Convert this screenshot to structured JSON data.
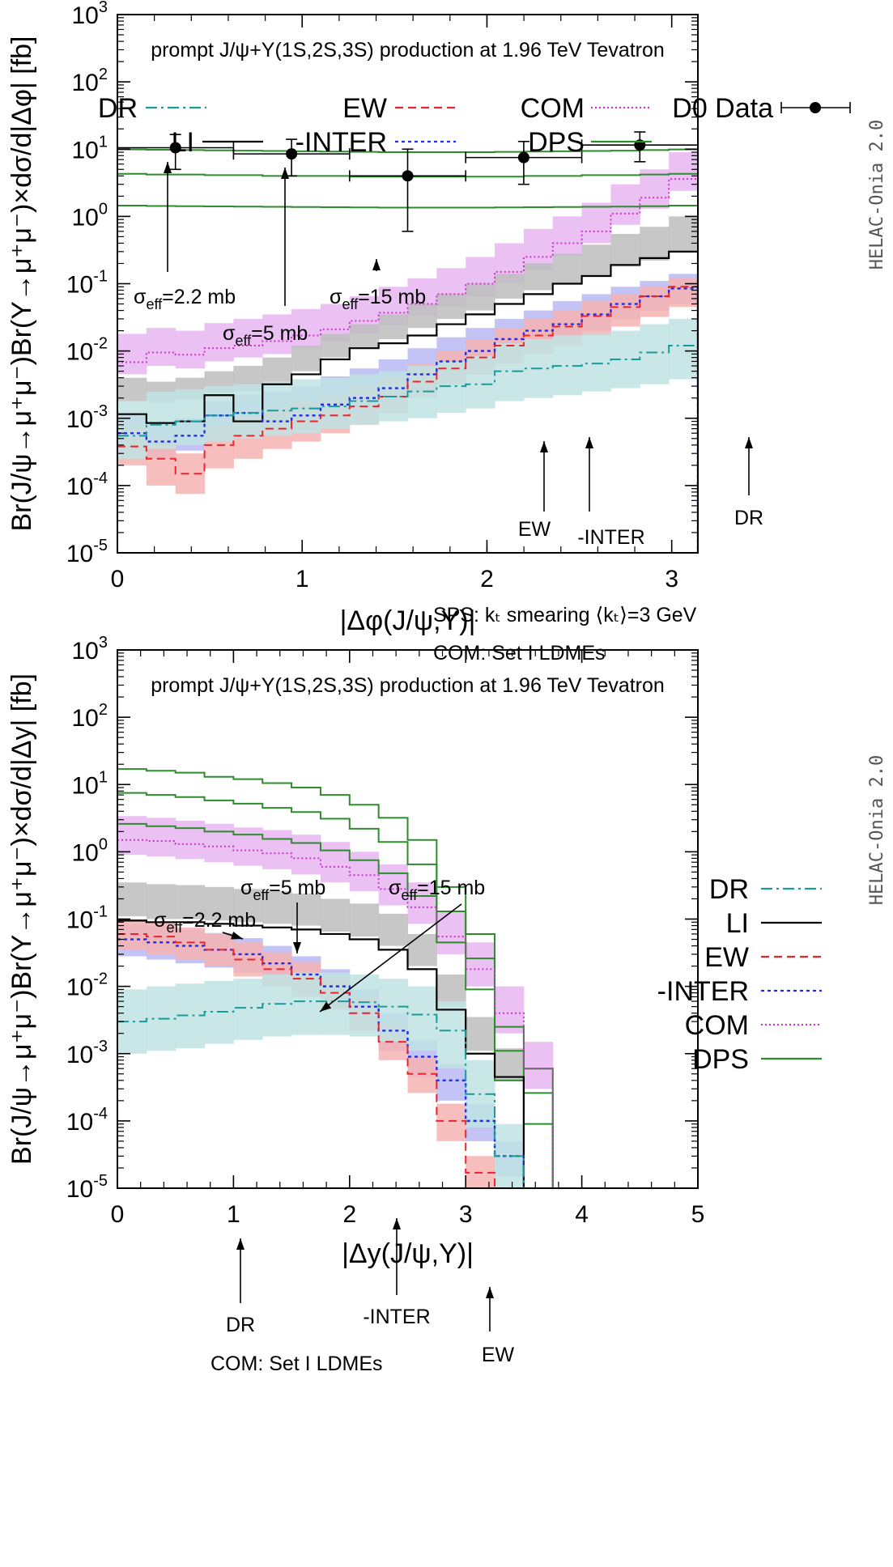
{
  "watermark": "HELAC-Onia 2.0",
  "colors": {
    "DR": "#1a9a9a",
    "LI": "#000000",
    "EW": "#e8252b",
    "INTER": "#1f2ee6",
    "COM": "#cc33cc",
    "DPS": "#2e8b2e",
    "DATA": "#000000",
    "DR_band": "#bfe3e3",
    "LI_band": "#bdbdbd",
    "EW_band": "#f6b3b3",
    "INTER_band": "#b9b9f3",
    "COM_band": "#e7b6f2"
  },
  "chart_data": [
    {
      "type": "line",
      "title": "prompt J/ψ+Υ(1S,2S,3S) production at 1.96 TeV Tevatron",
      "xlabel": "|Δφ(J/ψ,Υ)|",
      "ylabel": "Br(J/ψ→μ⁺μ⁻)Br(Υ→μ⁺μ⁻)×dσ/d|Δφ| [fb]",
      "xlim": [
        0,
        3.14159
      ],
      "ylim_log10": [
        -5,
        3
      ],
      "log_y": true,
      "xticks": [
        "0",
        "1",
        "2",
        "3"
      ],
      "xtick_values": [
        0,
        1,
        2,
        3
      ],
      "yticks": [
        "10",
        "10",
        "10",
        "10",
        "10",
        "10",
        "10",
        "10",
        "10"
      ],
      "ytick_exps": [
        "-5",
        "-4",
        "-3",
        "-2",
        "-1",
        "0",
        "1",
        "2",
        "3"
      ],
      "legend": {
        "labels": {
          "DR": "DR",
          "LI": "LI",
          "EW": "EW",
          "INTER": "-INTER",
          "COM": "COM",
          "DPS": "DPS",
          "DATA": "D0 Data"
        },
        "placement": "top"
      },
      "annotations": {
        "text1": "SPS: kₜ smearing ⟨kₜ⟩=3 GeV",
        "text2": "COM: Set I LDMEs",
        "s22": "σeff=2.2 mb",
        "s5": "σeff=5 mb",
        "s15": "σeff=15 mb",
        "ew": "EW",
        "inter": "-INTER",
        "dr": "DR"
      },
      "nbins": 20,
      "series": [
        {
          "name": "DPS",
          "key": "DPS",
          "groups": [
            [
              9.9,
              9.8,
              9.7,
              9.6,
              9.5,
              9.4,
              9.3,
              9.2,
              9.1,
              9.0,
              9.0,
              9.0,
              9.0,
              9.1,
              9.2,
              9.3,
              9.4,
              9.5,
              9.7,
              9.9
            ],
            [
              4.3,
              4.2,
              4.2,
              4.1,
              4.1,
              4.0,
              4.0,
              4.0,
              3.9,
              3.9,
              3.9,
              3.9,
              3.9,
              3.9,
              4.0,
              4.0,
              4.1,
              4.1,
              4.2,
              4.3
            ],
            [
              1.45,
              1.43,
              1.42,
              1.41,
              1.4,
              1.39,
              1.38,
              1.37,
              1.36,
              1.35,
              1.35,
              1.35,
              1.35,
              1.36,
              1.37,
              1.38,
              1.39,
              1.4,
              1.42,
              1.45
            ]
          ]
        },
        {
          "name": "COM",
          "key": "COM",
          "values": [
            0.0068,
            0.0095,
            0.0088,
            0.011,
            0.012,
            0.014,
            0.017,
            0.021,
            0.028,
            0.037,
            0.05,
            0.07,
            0.1,
            0.15,
            0.25,
            0.4,
            0.6,
            1.1,
            1.9,
            3.6
          ],
          "lo": [
            0.0045,
            0.006,
            0.0055,
            0.007,
            0.008,
            0.009,
            0.011,
            0.014,
            0.018,
            0.024,
            0.033,
            0.046,
            0.065,
            0.1,
            0.16,
            0.26,
            0.4,
            0.75,
            1.3,
            2.4
          ],
          "hi": [
            0.018,
            0.022,
            0.02,
            0.026,
            0.03,
            0.035,
            0.042,
            0.05,
            0.065,
            0.09,
            0.12,
            0.17,
            0.25,
            0.4,
            0.65,
            1.0,
            1.6,
            3.0,
            5.0,
            9.0
          ]
        },
        {
          "name": "LI",
          "key": "LI",
          "values": [
            0.00115,
            0.00085,
            0.0009,
            0.0022,
            0.0009,
            0.0032,
            0.0045,
            0.0075,
            0.011,
            0.013,
            0.017,
            0.025,
            0.035,
            0.05,
            0.07,
            0.1,
            0.13,
            0.19,
            0.24,
            0.3
          ],
          "lo": [
            0.0018,
            0.0017,
            0.0019,
            0.0024,
            0.0025,
            0.0035,
            0.005,
            0.008,
            0.011,
            0.015,
            0.022,
            0.03,
            0.04,
            0.06,
            0.08,
            0.1,
            0.13,
            0.18,
            0.22,
            0.3
          ],
          "hi": [
            0.004,
            0.0035,
            0.004,
            0.005,
            0.006,
            0.008,
            0.012,
            0.018,
            0.025,
            0.035,
            0.05,
            0.07,
            0.1,
            0.14,
            0.2,
            0.28,
            0.38,
            0.55,
            0.7,
            1.0
          ]
        },
        {
          "name": "-INTER",
          "key": "INTER",
          "values": [
            0.0006,
            0.00045,
            0.00055,
            0.0011,
            0.0012,
            0.0009,
            0.0011,
            0.0016,
            0.002,
            0.0028,
            0.0045,
            0.007,
            0.01,
            0.015,
            0.02,
            0.025,
            0.035,
            0.05,
            0.065,
            0.085
          ],
          "lo": [
            0.0003,
            0.00025,
            0.00033,
            0.0005,
            0.0006,
            0.00065,
            0.0007,
            0.0009,
            0.0012,
            0.0017,
            0.0026,
            0.004,
            0.006,
            0.008,
            0.011,
            0.015,
            0.02,
            0.03,
            0.04,
            0.05
          ],
          "hi": [
            0.0012,
            0.0008,
            0.001,
            0.0018,
            0.0022,
            0.0025,
            0.003,
            0.0042,
            0.0055,
            0.0075,
            0.011,
            0.016,
            0.022,
            0.03,
            0.04,
            0.055,
            0.07,
            0.09,
            0.11,
            0.14
          ]
        },
        {
          "name": "EW",
          "key": "EW",
          "values": [
            0.00038,
            0.00025,
            0.00015,
            0.0004,
            0.00055,
            0.0007,
            0.0009,
            0.0011,
            0.0015,
            0.0021,
            0.0035,
            0.0055,
            0.008,
            0.012,
            0.017,
            0.023,
            0.033,
            0.045,
            0.065,
            0.09
          ],
          "lo": [
            0.0002,
            0.0001,
            7.5e-05,
            0.00018,
            0.00025,
            0.00035,
            0.00045,
            0.0006,
            0.0008,
            0.0012,
            0.002,
            0.0031,
            0.0045,
            0.0065,
            0.009,
            0.012,
            0.017,
            0.023,
            0.032,
            0.045
          ],
          "hi": [
            0.00075,
            0.0005,
            0.0003,
            0.0008,
            0.0011,
            0.0014,
            0.0018,
            0.0022,
            0.003,
            0.0042,
            0.0065,
            0.01,
            0.015,
            0.022,
            0.03,
            0.04,
            0.055,
            0.07,
            0.09,
            0.12
          ]
        },
        {
          "name": "DR",
          "key": "DR",
          "values": [
            0.00055,
            0.0008,
            0.0009,
            0.0011,
            0.0012,
            0.0013,
            0.0014,
            0.0015,
            0.0018,
            0.0021,
            0.0025,
            0.003,
            0.0032,
            0.005,
            0.0055,
            0.006,
            0.0065,
            0.0075,
            0.0095,
            0.012
          ],
          "lo": [
            0.00025,
            0.00035,
            0.0004,
            0.00045,
            0.0005,
            0.00055,
            0.0006,
            0.0007,
            0.0008,
            0.0009,
            0.001,
            0.0012,
            0.0014,
            0.0018,
            0.002,
            0.0022,
            0.0025,
            0.0028,
            0.0032,
            0.0038
          ],
          "hi": [
            0.0018,
            0.0025,
            0.0027,
            0.003,
            0.0032,
            0.0035,
            0.0038,
            0.004,
            0.0045,
            0.005,
            0.006,
            0.007,
            0.0085,
            0.013,
            0.015,
            0.017,
            0.018,
            0.02,
            0.025,
            0.03
          ]
        }
      ],
      "data_points": {
        "name": "D0 Data",
        "x": [
          0.3142,
          0.9425,
          1.5708,
          2.1991,
          2.8274
        ],
        "y": [
          10.5,
          8.5,
          4.0,
          7.5,
          11.5
        ],
        "ylo": [
          5.0,
          4.0,
          0.6,
          3.0,
          6.5
        ],
        "yhi": [
          16.5,
          14.0,
          10.0,
          13.0,
          18.0
        ],
        "xerr": 0.3142
      }
    },
    {
      "type": "line",
      "title": "prompt J/ψ+Υ(1S,2S,3S) production at 1.96 TeV Tevatron",
      "xlabel": "|Δy(J/ψ,Υ)|",
      "ylabel": "Br(J/ψ→μ⁺μ⁻)Br(Υ→μ⁺μ⁻)×dσ/d|Δy| [fb]",
      "xlim": [
        0,
        5
      ],
      "ylim_log10": [
        -5,
        3
      ],
      "log_y": true,
      "xticks": [
        "0",
        "1",
        "2",
        "3",
        "4",
        "5"
      ],
      "xtick_values": [
        0,
        1,
        2,
        3,
        4,
        5
      ],
      "yticks": [
        "10",
        "10",
        "10",
        "10",
        "10",
        "10",
        "10",
        "10",
        "10"
      ],
      "ytick_exps": [
        "-5",
        "-4",
        "-3",
        "-2",
        "-1",
        "0",
        "1",
        "2",
        "3"
      ],
      "legend": {
        "labels": {
          "DR": "DR",
          "LI": "LI",
          "EW": "EW",
          "INTER": "-INTER",
          "COM": "COM",
          "DPS": "DPS"
        },
        "placement": "top-right"
      },
      "annotations": {
        "text2": "COM: Set I LDMEs",
        "s22": "σeff=2.2 mb",
        "s5": "σeff=5 mb",
        "s15": "σeff=15 mb",
        "dr": "DR",
        "inter": "-INTER",
        "ew": "EW"
      },
      "nbins": 16,
      "bin_width": 0.25,
      "series": [
        {
          "name": "DPS",
          "key": "DPS",
          "groups": [
            [
              17,
              16,
              15,
              13,
              12,
              10.5,
              9,
              7,
              5,
              3.2,
              1.5,
              0.3,
              0.06,
              0.0025,
              0.0006,
              0
            ],
            [
              7.5,
              7,
              6.5,
              5.8,
              5.2,
              4.5,
              3.9,
              3.1,
              2.2,
              1.4,
              0.65,
              0.13,
              0.026,
              0.0011,
              0.00026,
              0
            ],
            [
              2.6,
              2.4,
              2.25,
              2.0,
              1.8,
              1.55,
              1.35,
              1.05,
              0.75,
              0.48,
              0.22,
              0.045,
              0.009,
              0.0004,
              9e-05,
              0
            ]
          ]
        },
        {
          "name": "COM",
          "key": "COM",
          "values": [
            1.5,
            1.45,
            1.3,
            1.2,
            1.05,
            0.95,
            0.8,
            0.6,
            0.45,
            0.28,
            0.15,
            0.055,
            0.018,
            0.004,
            0.0006,
            0
          ],
          "lo": [
            0.9,
            0.85,
            0.78,
            0.7,
            0.62,
            0.55,
            0.46,
            0.35,
            0.26,
            0.16,
            0.085,
            0.03,
            0.01,
            0.002,
            0.0003,
            0
          ],
          "hi": [
            3.4,
            3.2,
            2.9,
            2.6,
            2.3,
            2.1,
            1.8,
            1.4,
            1.0,
            0.65,
            0.35,
            0.13,
            0.045,
            0.01,
            0.0015,
            0
          ]
        },
        {
          "name": "LI",
          "key": "LI",
          "values": [
            0.095,
            0.09,
            0.09,
            0.085,
            0.08,
            0.075,
            0.07,
            0.06,
            0.05,
            0.035,
            0.018,
            0.0045,
            0.001,
            0.00045,
            0,
            0
          ],
          "lo": [
            0.11,
            0.1,
            0.1,
            0.095,
            0.09,
            0.085,
            0.08,
            0.065,
            0.055,
            0.04,
            0.02,
            0.005,
            0.0011,
            0.0004,
            0,
            0
          ],
          "hi": [
            0.35,
            0.33,
            0.32,
            0.3,
            0.28,
            0.26,
            0.24,
            0.2,
            0.17,
            0.12,
            0.06,
            0.015,
            0.0035,
            0.0012,
            0,
            0
          ]
        },
        {
          "name": "-INTER",
          "key": "INTER",
          "values": [
            0.05,
            0.045,
            0.04,
            0.035,
            0.03,
            0.022,
            0.015,
            0.01,
            0.005,
            0.0022,
            0.0009,
            0.0004,
            0.0001,
            3e-05,
            0,
            0
          ],
          "lo": [
            0.028,
            0.025,
            0.022,
            0.019,
            0.016,
            0.012,
            0.008,
            0.005,
            0.0025,
            0.0011,
            0.00045,
            0.0002,
            5e-05,
            1.5e-05,
            0,
            0
          ],
          "hi": [
            0.085,
            0.08,
            0.07,
            0.062,
            0.052,
            0.04,
            0.028,
            0.018,
            0.009,
            0.004,
            0.0016,
            0.0007,
            0.00018,
            5e-05,
            0,
            0
          ]
        },
        {
          "name": "EW",
          "key": "EW",
          "values": [
            0.06,
            0.055,
            0.045,
            0.035,
            0.025,
            0.018,
            0.013,
            0.008,
            0.004,
            0.0015,
            0.0005,
            0.0001,
            1.7e-05,
            0,
            0,
            0
          ],
          "lo": [
            0.035,
            0.03,
            0.025,
            0.02,
            0.014,
            0.01,
            0.007,
            0.0045,
            0.0022,
            0.0008,
            0.00026,
            5e-05,
            9e-06,
            0,
            0,
            0
          ],
          "hi": [
            0.1,
            0.09,
            0.075,
            0.06,
            0.045,
            0.032,
            0.023,
            0.014,
            0.007,
            0.0027,
            0.0009,
            0.00018,
            3e-05,
            0,
            0,
            0
          ]
        },
        {
          "name": "DR",
          "key": "DR",
          "values": [
            0.003,
            0.0033,
            0.0037,
            0.0042,
            0.0048,
            0.0055,
            0.006,
            0.006,
            0.0058,
            0.005,
            0.0038,
            0.0022,
            0.00025,
            3e-05,
            0,
            0
          ],
          "lo": [
            0.001,
            0.0011,
            0.0012,
            0.0014,
            0.0016,
            0.0018,
            0.0019,
            0.0019,
            0.0018,
            0.0015,
            0.0011,
            0.0006,
            8e-05,
            1e-05,
            0,
            0
          ],
          "hi": [
            0.009,
            0.01,
            0.011,
            0.012,
            0.013,
            0.015,
            0.016,
            0.016,
            0.015,
            0.013,
            0.01,
            0.006,
            0.0008,
            9e-05,
            0,
            0
          ]
        }
      ]
    }
  ]
}
